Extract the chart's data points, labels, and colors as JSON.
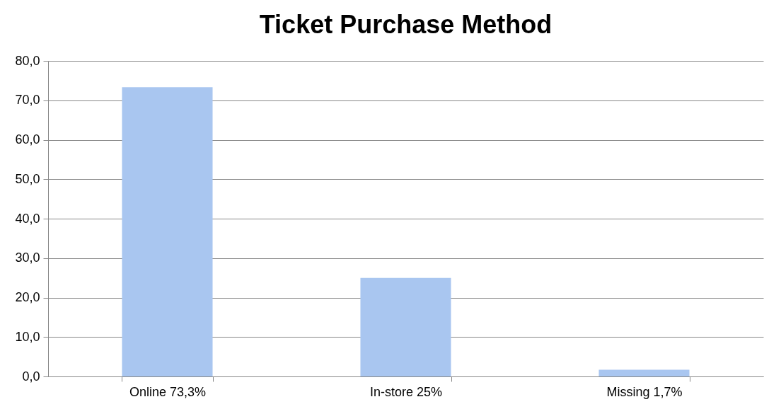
{
  "chart_data": {
    "type": "bar",
    "title": "Ticket Purchase Method",
    "categories": [
      "Online 73,3%",
      "In-store 25%",
      "Missing 1,7%"
    ],
    "values": [
      73.3,
      25,
      1.7
    ],
    "color": "#a9c6f0",
    "ylim": [
      0,
      80
    ],
    "yticks": [
      {
        "value": 0,
        "label": "0,0"
      },
      {
        "value": 10,
        "label": "10,0"
      },
      {
        "value": 20,
        "label": "20,0"
      },
      {
        "value": 30,
        "label": "30,0"
      },
      {
        "value": 40,
        "label": "40,0"
      },
      {
        "value": 50,
        "label": "50,0"
      },
      {
        "value": 60,
        "label": "60,0"
      },
      {
        "value": 70,
        "label": "70,0"
      },
      {
        "value": 80,
        "label": "80,0"
      }
    ],
    "grid": "y"
  }
}
